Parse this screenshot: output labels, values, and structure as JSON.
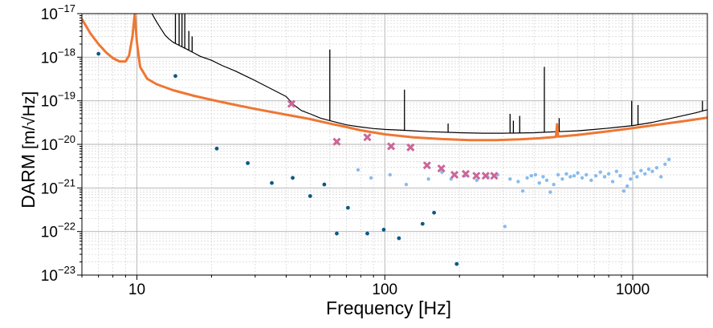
{
  "chart_data": {
    "type": "scatter",
    "title": "",
    "xlabel": "Frequency [Hz]",
    "ylabel": "DARM",
    "ylabel_unit": "[m/√Hz]",
    "xscale": "log",
    "yscale": "log",
    "xlim": [
      6,
      2000
    ],
    "ylim": [
      1e-23,
      1e-17
    ],
    "grid": true,
    "x_ticks": [
      {
        "value": 10,
        "label": "10"
      },
      {
        "value": 100,
        "label": "100"
      },
      {
        "value": 1000,
        "label": "1000"
      }
    ],
    "y_ticks": [
      {
        "value": 1e-17,
        "mant": "10",
        "exp": "−17"
      },
      {
        "value": 1e-18,
        "mant": "10",
        "exp": "−18"
      },
      {
        "value": 1e-19,
        "mant": "10",
        "exp": "−19"
      },
      {
        "value": 1e-20,
        "mant": "10",
        "exp": "−20"
      },
      {
        "value": 1e-21,
        "mant": "10",
        "exp": "−21"
      },
      {
        "value": 1e-22,
        "mant": "10",
        "exp": "−22"
      },
      {
        "value": 1e-23,
        "mant": "10",
        "exp": "−23"
      }
    ],
    "colors": {
      "measured": "#000000",
      "model": "#ee7733",
      "dark_points": "#0a5a85",
      "light_points": "#88bbee",
      "x_markers": "#cc6699"
    },
    "series": [
      {
        "kind": "line",
        "color_key": "measured",
        "points": [
          [
            11.5,
            1e-17
          ],
          [
            12,
            6.5e-18
          ],
          [
            12.5,
            4.5e-18
          ],
          [
            13,
            3.2e-18
          ],
          [
            13.5,
            2.6e-18
          ],
          [
            14,
            2.2e-18
          ],
          [
            15,
            1.8e-18
          ],
          [
            16,
            1.5e-18
          ],
          [
            17,
            1.25e-18
          ],
          [
            18,
            1.05e-18
          ],
          [
            20,
            8.5e-19
          ],
          [
            22,
            6.5e-19
          ],
          [
            25,
            4.8e-19
          ],
          [
            28,
            3.5e-19
          ],
          [
            30,
            2.9e-19
          ],
          [
            33,
            2.2e-19
          ],
          [
            36,
            1.7e-19
          ],
          [
            40,
            1.25e-19
          ],
          [
            43,
            8e-20
          ],
          [
            46,
            6e-20
          ],
          [
            50,
            5e-20
          ],
          [
            55,
            4e-20
          ],
          [
            60,
            3.5e-20
          ],
          [
            70,
            2.8e-20
          ],
          [
            80,
            2.5e-20
          ],
          [
            90,
            2.3e-20
          ],
          [
            100,
            2.2e-20
          ],
          [
            120,
            2.1e-20
          ],
          [
            150,
            1.95e-20
          ],
          [
            200,
            1.85e-20
          ],
          [
            250,
            1.8e-20
          ],
          [
            300,
            1.8e-20
          ],
          [
            400,
            1.85e-20
          ],
          [
            500,
            1.95e-20
          ],
          [
            600,
            2.05e-20
          ],
          [
            700,
            2.2e-20
          ],
          [
            800,
            2.35e-20
          ],
          [
            1000,
            2.7e-20
          ],
          [
            1200,
            3.2e-20
          ],
          [
            1500,
            4.2e-20
          ],
          [
            1800,
            5.3e-20
          ],
          [
            1950,
            6e-20
          ],
          [
            2000,
            6.2e-20
          ]
        ]
      },
      {
        "kind": "spikes",
        "color_key": "measured",
        "points": [
          [
            14.3,
            1e-17
          ],
          [
            14.8,
            1e-17
          ],
          [
            15.2,
            1e-17
          ],
          [
            15.6,
            1e-17
          ],
          [
            16.2,
            4e-18
          ],
          [
            16.7,
            3e-18
          ],
          [
            41.5,
            1e-19
          ],
          [
            60,
            1.5e-18
          ],
          [
            120,
            1.8e-19
          ],
          [
            180,
            3e-20
          ],
          [
            320,
            5e-20
          ],
          [
            330,
            3.5e-20
          ],
          [
            350,
            4.5e-20
          ],
          [
            440,
            6e-19
          ],
          [
            505,
            4e-20
          ],
          [
            990,
            1e-19
          ],
          [
            1050,
            8e-20
          ],
          [
            1910,
            1e-19
          ]
        ]
      },
      {
        "kind": "line",
        "color_key": "model",
        "points": [
          [
            6,
            7.5e-18
          ],
          [
            6.5,
            3.5e-18
          ],
          [
            7,
            2e-18
          ],
          [
            7.5,
            1.3e-18
          ],
          [
            8,
            9.5e-19
          ],
          [
            8.5,
            8e-19
          ],
          [
            9,
            8e-19
          ],
          [
            9.3,
            1.1e-18
          ],
          [
            9.6,
            3e-18
          ],
          [
            9.8,
            1e-17
          ],
          [
            10,
            2.2e-18
          ],
          [
            10.3,
            6e-19
          ],
          [
            11,
            3.2e-19
          ],
          [
            12,
            2.4e-19
          ],
          [
            14,
            1.75e-19
          ],
          [
            17,
            1.3e-19
          ],
          [
            20,
            1.05e-19
          ],
          [
            25,
            8e-20
          ],
          [
            30,
            6.5e-20
          ],
          [
            40,
            4.8e-20
          ],
          [
            50,
            3.8e-20
          ],
          [
            60,
            3e-20
          ],
          [
            70,
            2.5e-20
          ],
          [
            80,
            2.1e-20
          ],
          [
            100,
            1.7e-20
          ],
          [
            130,
            1.45e-20
          ],
          [
            170,
            1.32e-20
          ],
          [
            220,
            1.25e-20
          ],
          [
            280,
            1.25e-20
          ],
          [
            350,
            1.3e-20
          ],
          [
            420,
            1.38e-20
          ],
          [
            490,
            1.48e-20
          ],
          [
            495,
            2.9e-20
          ],
          [
            500,
            1.5e-20
          ],
          [
            600,
            1.65e-20
          ],
          [
            800,
            2e-20
          ],
          [
            1000,
            2.35e-20
          ],
          [
            1300,
            2.9e-20
          ],
          [
            1600,
            3.4e-20
          ],
          [
            2000,
            4.1e-20
          ]
        ]
      },
      {
        "kind": "points",
        "color_key": "dark_points",
        "points": [
          [
            7,
            1.2e-18
          ],
          [
            14.3,
            3.7e-19
          ],
          [
            21,
            8e-21
          ],
          [
            28,
            3.7e-21
          ],
          [
            35,
            1.3e-21
          ],
          [
            42.5,
            1.7e-21
          ],
          [
            50,
            6.5e-22
          ],
          [
            57,
            1.2e-21
          ],
          [
            71,
            3.5e-22
          ],
          [
            64,
            9e-23
          ],
          [
            85,
            9e-23
          ],
          [
            99,
            1.1e-22
          ],
          [
            114,
            7e-23
          ],
          [
            142,
            1.5e-22
          ],
          [
            158,
            2.7e-22
          ],
          [
            195,
            1.8e-23
          ]
        ]
      },
      {
        "kind": "points",
        "color_key": "light_points",
        "points": [
          [
            78,
            2.6e-21
          ],
          [
            88,
            1.7e-21
          ],
          [
            105,
            2e-21
          ],
          [
            122,
            1.2e-21
          ],
          [
            150,
            1.6e-21
          ],
          [
            170,
            2.3e-21
          ],
          [
            185,
            1.6e-21
          ],
          [
            210,
            1.9e-21
          ],
          [
            235,
            1.5e-21
          ],
          [
            260,
            1.8e-21
          ],
          [
            285,
            2e-21
          ],
          [
            305,
            1.3e-22
          ],
          [
            320,
            1.6e-21
          ],
          [
            345,
            1.4e-21
          ],
          [
            360,
            8.5e-22
          ],
          [
            375,
            1.7e-21
          ],
          [
            390,
            1.9e-21
          ],
          [
            405,
            2e-21
          ],
          [
            420,
            1.3e-21
          ],
          [
            435,
            1.8e-21
          ],
          [
            450,
            1.5e-21
          ],
          [
            465,
            8e-22
          ],
          [
            480,
            1.2e-21
          ],
          [
            500,
            2e-21
          ],
          [
            520,
            1.6e-21
          ],
          [
            540,
            2.1e-21
          ],
          [
            560,
            1.8e-21
          ],
          [
            580,
            1.9e-21
          ],
          [
            600,
            2.2e-21
          ],
          [
            625,
            1.7e-21
          ],
          [
            650,
            2e-21
          ],
          [
            680,
            1.5e-21
          ],
          [
            710,
            1.9e-21
          ],
          [
            740,
            2.3e-21
          ],
          [
            770,
            1.8e-21
          ],
          [
            800,
            2.1e-21
          ],
          [
            830,
            1.4e-21
          ],
          [
            860,
            2.4e-21
          ],
          [
            890,
            1.9e-21
          ],
          [
            920,
            8.5e-22
          ],
          [
            950,
            1.1e-21
          ],
          [
            980,
            1.6e-21
          ],
          [
            1010,
            2.2e-21
          ],
          [
            1040,
            1.8e-21
          ],
          [
            1080,
            2.5e-21
          ],
          [
            1120,
            2.1e-21
          ],
          [
            1160,
            2.7e-21
          ],
          [
            1200,
            2.4e-21
          ],
          [
            1250,
            2.9e-21
          ],
          [
            1300,
            1.8e-21
          ],
          [
            1350,
            3.5e-21
          ],
          [
            1400,
            4.5e-21
          ]
        ]
      },
      {
        "kind": "markers",
        "color_key": "x_markers",
        "points": [
          [
            42,
            8.5e-20
          ],
          [
            64,
            1.15e-20
          ],
          [
            85,
            1.45e-20
          ],
          [
            106,
            9e-21
          ],
          [
            127,
            8.5e-21
          ],
          [
            148,
            3.3e-21
          ],
          [
            169,
            2.8e-21
          ],
          [
            191,
            2e-21
          ],
          [
            212,
            2.1e-21
          ],
          [
            234,
            1.9e-21
          ],
          [
            255,
            1.9e-21
          ],
          [
            276,
            1.9e-21
          ]
        ]
      }
    ]
  }
}
